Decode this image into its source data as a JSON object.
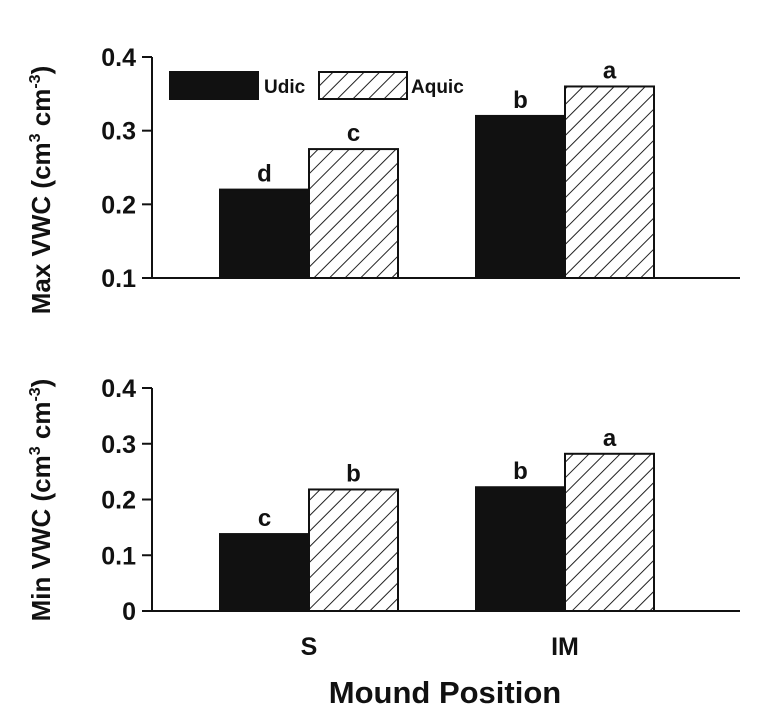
{
  "xlabel": "Mound Position",
  "categories": [
    "S",
    "IM"
  ],
  "legend": {
    "position": "top-left",
    "items": [
      {
        "label": "Udic",
        "style": "solid",
        "color": "#111111"
      },
      {
        "label": "Aquic",
        "style": "hatched",
        "color": "#111111"
      }
    ]
  },
  "colors": {
    "udic": "#111111",
    "aquic_fill": "#ffffff",
    "axis": "#111111"
  },
  "chart_data": [
    {
      "type": "bar",
      "ylabel": "Max VWC (cm³ cm⁻³)",
      "ylabel_parts": {
        "main": "Max VWC (cm",
        "sup1": "3",
        "mid": " cm",
        "sup2": "-3",
        "end": ")"
      },
      "ylim": [
        0.1,
        0.4
      ],
      "yticks": [
        "0.1",
        "0.2",
        "0.3",
        "0.4"
      ],
      "categories": [
        "S",
        "IM"
      ],
      "series": [
        {
          "name": "Udic",
          "values": [
            0.22,
            0.32
          ],
          "labels": [
            "d",
            "b"
          ]
        },
        {
          "name": "Aquic",
          "values": [
            0.275,
            0.36
          ],
          "labels": [
            "c",
            "a"
          ]
        }
      ],
      "grid": false
    },
    {
      "type": "bar",
      "ylabel": "Min VWC (cm³ cm⁻³)",
      "ylabel_parts": {
        "main": "Min VWC (cm",
        "sup1": "3",
        "mid": " cm",
        "sup2": "-3",
        "end": ")"
      },
      "ylim": [
        0,
        0.4
      ],
      "yticks": [
        "0",
        "0.1",
        "0.2",
        "0.3",
        "0.4"
      ],
      "categories": [
        "S",
        "IM"
      ],
      "series": [
        {
          "name": "Udic",
          "values": [
            0.138,
            0.222
          ],
          "labels": [
            "c",
            "b"
          ]
        },
        {
          "name": "Aquic",
          "values": [
            0.218,
            0.282
          ],
          "labels": [
            "b",
            "a"
          ]
        }
      ],
      "grid": false
    }
  ]
}
